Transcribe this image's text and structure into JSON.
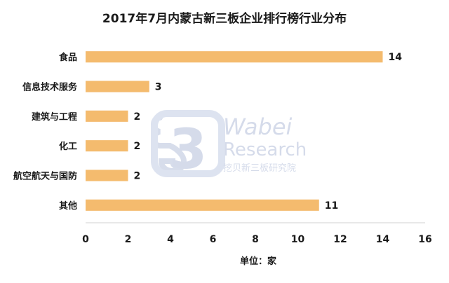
{
  "watermark": {
    "logo_text": "3",
    "brand_line1": "Wabei",
    "brand_line2": "Research",
    "brand_line3": "挖贝新三板研究院"
  },
  "chart_data": {
    "type": "bar",
    "orientation": "horizontal",
    "title": "2017年7月内蒙古新三板企业排行榜行业分布",
    "xlabel": "单位：家",
    "ylabel": "",
    "categories": [
      "食品",
      "信息技术服务",
      "建筑与工程",
      "化工",
      "航空航天与国防",
      "其他"
    ],
    "values": [
      14,
      3,
      2,
      2,
      2,
      11
    ],
    "data_labels": [
      "14",
      "3",
      "2",
      "2",
      "2",
      "11"
    ],
    "xlim": [
      0,
      16
    ],
    "x_ticks": [
      0,
      2,
      4,
      6,
      8,
      10,
      12,
      14,
      16
    ],
    "grid": false,
    "legend": "none",
    "bar_color": "#f4bb6e"
  }
}
